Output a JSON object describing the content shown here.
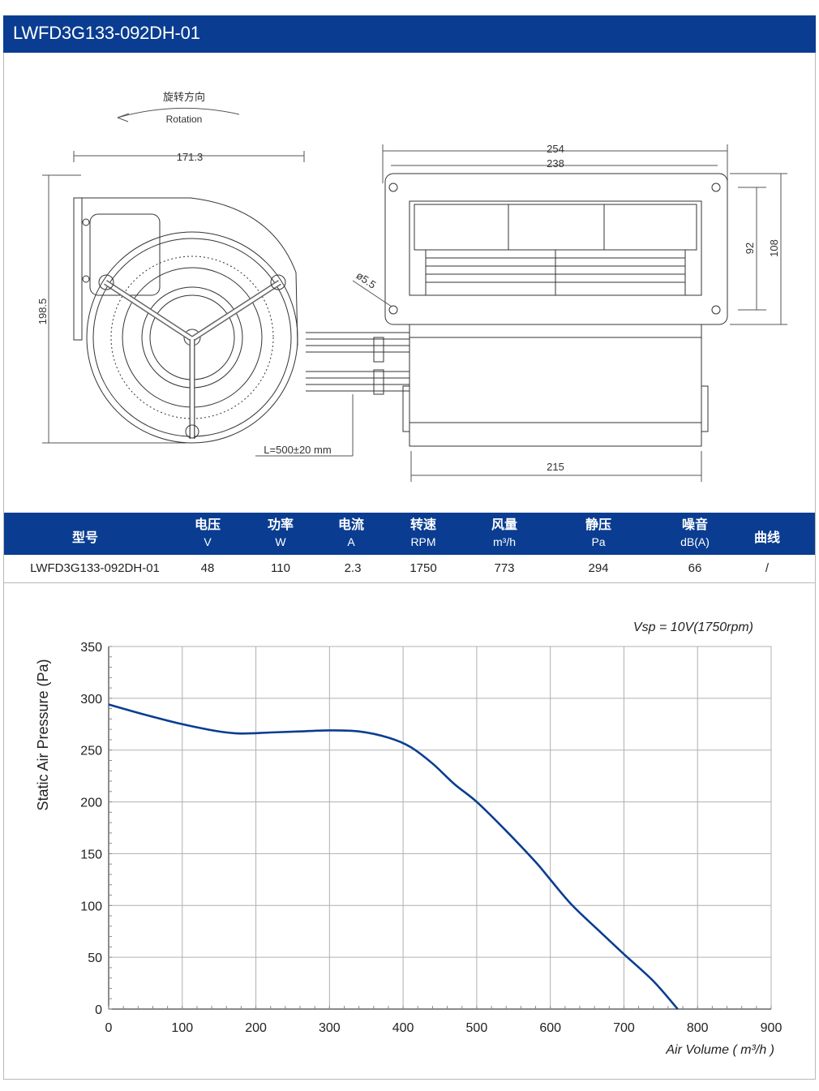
{
  "title": "LWFD3G133-092DH-01",
  "drawing": {
    "rotation_zh": "旋转方向",
    "rotation_en": "Rotation",
    "dim_width_front": "171.3",
    "dim_height_front": "198.5",
    "dim_total_width": "254",
    "dim_hole_width": "238",
    "dim_hole_height": "92",
    "dim_total_height": "108",
    "dim_hole_dia": "ø5.5",
    "dim_body_width": "215",
    "dim_cable": "L=500±20 mm"
  },
  "spec_table": {
    "headers": [
      {
        "zh": "型号",
        "unit": ""
      },
      {
        "zh": "电压",
        "unit": "V"
      },
      {
        "zh": "功率",
        "unit": "W"
      },
      {
        "zh": "电流",
        "unit": "A"
      },
      {
        "zh": "转速",
        "unit": "RPM"
      },
      {
        "zh": "风量",
        "unit": "m³/h"
      },
      {
        "zh": "静压",
        "unit": "Pa"
      },
      {
        "zh": "噪音",
        "unit": "dB(A)"
      },
      {
        "zh": "曲线",
        "unit": ""
      }
    ],
    "row": [
      "LWFD3G133-092DH-01",
      "48",
      "110",
      "2.3",
      "1750",
      "773",
      "294",
      "66",
      "/"
    ]
  },
  "chart_data": {
    "type": "line",
    "annotation": "Vsp = 10V(1750rpm)",
    "xlabel": "Air Volume ( m³/h )",
    "ylabel": "Static Air Pressure  (Pa)",
    "xlim": [
      0,
      900
    ],
    "ylim": [
      0,
      350
    ],
    "xticks": [
      0,
      100,
      200,
      300,
      400,
      500,
      600,
      700,
      800,
      900
    ],
    "yticks": [
      0,
      50,
      100,
      150,
      200,
      250,
      300,
      350
    ],
    "grid": true,
    "line_color": "#0a3d91",
    "series": [
      {
        "name": "",
        "x": [
          0,
          50,
          100,
          150,
          180,
          220,
          260,
          300,
          340,
          380,
          410,
          440,
          470,
          500,
          540,
          580,
          600,
          630,
          670,
          700,
          740,
          773
        ],
        "y": [
          294,
          284,
          275,
          268,
          266,
          267,
          268,
          269,
          268,
          262,
          253,
          237,
          217,
          200,
          172,
          142,
          125,
          100,
          73,
          53,
          27,
          0
        ]
      }
    ]
  }
}
